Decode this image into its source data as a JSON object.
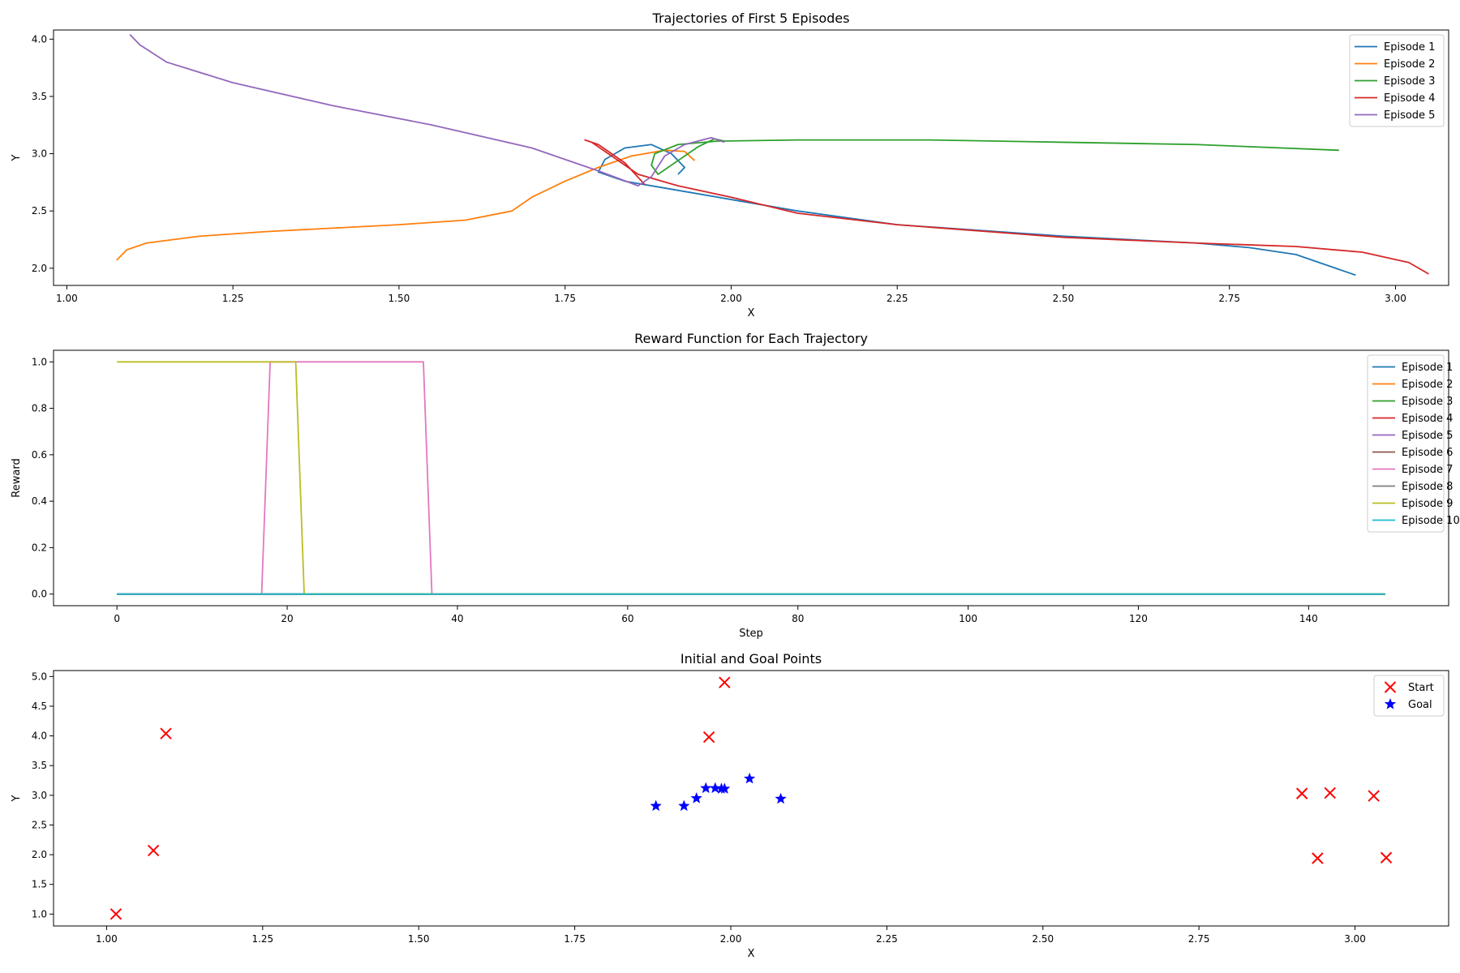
{
  "chart_data": [
    {
      "type": "line",
      "title": "Trajectories of First 5 Episodes",
      "xlabel": "X",
      "ylabel": "Y",
      "xlim": [
        0.98,
        3.08
      ],
      "ylim": [
        1.85,
        4.08
      ],
      "xticks": [
        1.0,
        1.25,
        1.5,
        1.75,
        2.0,
        2.25,
        2.5,
        2.75,
        3.0
      ],
      "yticks": [
        2.0,
        2.5,
        3.0,
        3.5,
        4.0
      ],
      "xtick_format": 2,
      "ytick_format": 1,
      "grid": false,
      "legend_position": "top-right",
      "series": [
        {
          "name": "Episode 1",
          "color": "#1f77b4",
          "points": [
            [
              2.94,
              1.94
            ],
            [
              2.9,
              2.02
            ],
            [
              2.85,
              2.12
            ],
            [
              2.78,
              2.18
            ],
            [
              2.7,
              2.22
            ],
            [
              2.5,
              2.28
            ],
            [
              2.25,
              2.38
            ],
            [
              2.1,
              2.5
            ],
            [
              2.0,
              2.6
            ],
            [
              1.9,
              2.7
            ],
            [
              1.84,
              2.76
            ],
            [
              1.8,
              2.84
            ],
            [
              1.81,
              2.95
            ],
            [
              1.84,
              3.05
            ],
            [
              1.88,
              3.08
            ],
            [
              1.91,
              3.0
            ],
            [
              1.93,
              2.88
            ],
            [
              1.92,
              2.82
            ]
          ]
        },
        {
          "name": "Episode 2",
          "color": "#ff7f0e",
          "points": [
            [
              1.075,
              2.07
            ],
            [
              1.09,
              2.16
            ],
            [
              1.12,
              2.22
            ],
            [
              1.2,
              2.28
            ],
            [
              1.3,
              2.32
            ],
            [
              1.5,
              2.38
            ],
            [
              1.6,
              2.42
            ],
            [
              1.67,
              2.5
            ],
            [
              1.7,
              2.62
            ],
            [
              1.75,
              2.76
            ],
            [
              1.8,
              2.88
            ],
            [
              1.85,
              2.98
            ],
            [
              1.9,
              3.03
            ],
            [
              1.93,
              3.02
            ],
            [
              1.945,
              2.94
            ]
          ]
        },
        {
          "name": "Episode 3",
          "color": "#2ca02c",
          "points": [
            [
              2.915,
              3.03
            ],
            [
              2.7,
              3.08
            ],
            [
              2.5,
              3.1
            ],
            [
              2.3,
              3.12
            ],
            [
              2.1,
              3.12
            ],
            [
              1.98,
              3.11
            ],
            [
              1.92,
              3.08
            ],
            [
              1.885,
              3.0
            ],
            [
              1.88,
              2.9
            ],
            [
              1.89,
              2.82
            ],
            [
              1.91,
              2.9
            ],
            [
              1.95,
              3.06
            ],
            [
              1.975,
              3.13
            ],
            [
              1.99,
              3.11
            ]
          ]
        },
        {
          "name": "Episode 4",
          "color": "#d62728",
          "points": [
            [
              3.05,
              1.95
            ],
            [
              3.02,
              2.05
            ],
            [
              2.95,
              2.14
            ],
            [
              2.85,
              2.19
            ],
            [
              2.7,
              2.22
            ],
            [
              2.5,
              2.27
            ],
            [
              2.25,
              2.38
            ],
            [
              2.1,
              2.48
            ],
            [
              2.0,
              2.62
            ],
            [
              1.92,
              2.72
            ],
            [
              1.86,
              2.82
            ],
            [
              1.82,
              2.98
            ],
            [
              1.79,
              3.1
            ],
            [
              1.78,
              3.12
            ],
            [
              1.8,
              3.08
            ],
            [
              1.84,
              2.92
            ],
            [
              1.87,
              2.73
            ]
          ]
        },
        {
          "name": "Episode 5",
          "color": "#9467bd",
          "points": [
            [
              1.095,
              4.04
            ],
            [
              1.11,
              3.95
            ],
            [
              1.15,
              3.8
            ],
            [
              1.25,
              3.62
            ],
            [
              1.4,
              3.42
            ],
            [
              1.55,
              3.25
            ],
            [
              1.7,
              3.05
            ],
            [
              1.8,
              2.85
            ],
            [
              1.86,
              2.72
            ],
            [
              1.88,
              2.8
            ],
            [
              1.9,
              2.98
            ],
            [
              1.93,
              3.08
            ],
            [
              1.97,
              3.14
            ],
            [
              1.99,
              3.1
            ]
          ]
        }
      ]
    },
    {
      "type": "line",
      "title": "Reward Function for Each Trajectory",
      "xlabel": "Step",
      "ylabel": "Reward",
      "xlim": [
        -7.45,
        156.45
      ],
      "ylim": [
        -0.05,
        1.05
      ],
      "xticks": [
        0,
        20,
        40,
        60,
        80,
        100,
        120,
        140
      ],
      "yticks": [
        0.0,
        0.2,
        0.4,
        0.6,
        0.8,
        1.0
      ],
      "xtick_format": 0,
      "ytick_format": 1,
      "grid": false,
      "legend_position": "top-right",
      "series": [
        {
          "name": "Episode 1",
          "color": "#1f77b4",
          "points": [
            [
              0,
              0
            ],
            [
              149,
              0
            ]
          ]
        },
        {
          "name": "Episode 2",
          "color": "#ff7f0e",
          "points": [
            [
              0,
              0
            ],
            [
              149,
              0
            ]
          ]
        },
        {
          "name": "Episode 3",
          "color": "#2ca02c",
          "points": [
            [
              0,
              0
            ],
            [
              149,
              0
            ]
          ]
        },
        {
          "name": "Episode 4",
          "color": "#d62728",
          "points": [
            [
              0,
              0
            ],
            [
              149,
              0
            ]
          ]
        },
        {
          "name": "Episode 5",
          "color": "#9467bd",
          "points": [
            [
              0,
              0
            ],
            [
              149,
              0
            ]
          ]
        },
        {
          "name": "Episode 6",
          "color": "#8c564b",
          "points": [
            [
              0,
              0
            ],
            [
              149,
              0
            ]
          ]
        },
        {
          "name": "Episode 7",
          "color": "#e377c2",
          "points": [
            [
              0,
              0
            ],
            [
              17,
              0
            ],
            [
              18,
              1
            ],
            [
              36,
              1
            ],
            [
              37,
              0
            ],
            [
              149,
              0
            ]
          ]
        },
        {
          "name": "Episode 8",
          "color": "#7f7f7f",
          "points": [
            [
              0,
              0
            ],
            [
              149,
              0
            ]
          ]
        },
        {
          "name": "Episode 9",
          "color": "#bcbd22",
          "points": [
            [
              0,
              1
            ],
            [
              21,
              1
            ],
            [
              22,
              0
            ],
            [
              149,
              0
            ]
          ]
        },
        {
          "name": "Episode 10",
          "color": "#17becf",
          "points": [
            [
              0,
              0
            ],
            [
              149,
              0
            ]
          ]
        }
      ]
    },
    {
      "type": "scatter",
      "title": "Initial and Goal Points",
      "xlabel": "X",
      "ylabel": "Y",
      "xlim": [
        0.915,
        3.15
      ],
      "ylim": [
        0.8,
        5.1
      ],
      "xticks": [
        1.0,
        1.25,
        1.5,
        1.75,
        2.0,
        2.25,
        2.5,
        2.75,
        3.0
      ],
      "yticks": [
        1.0,
        1.5,
        2.0,
        2.5,
        3.0,
        3.5,
        4.0,
        4.5,
        5.0
      ],
      "xtick_format": 2,
      "ytick_format": 1,
      "grid": false,
      "legend_position": "top-right",
      "series": [
        {
          "name": "Start",
          "color": "#ff0000",
          "marker": "x",
          "points": [
            [
              1.015,
              1.0
            ],
            [
              1.075,
              2.07
            ],
            [
              1.095,
              4.04
            ],
            [
              1.965,
              3.98
            ],
            [
              1.99,
              4.9
            ],
            [
              2.915,
              3.03
            ],
            [
              2.94,
              1.94
            ],
            [
              2.96,
              3.04
            ],
            [
              3.03,
              2.99
            ],
            [
              3.05,
              1.95
            ]
          ]
        },
        {
          "name": "Goal",
          "color": "#0000ff",
          "marker": "star",
          "points": [
            [
              1.88,
              2.82
            ],
            [
              1.925,
              2.82
            ],
            [
              1.945,
              2.95
            ],
            [
              1.96,
              3.12
            ],
            [
              1.975,
              3.12
            ],
            [
              1.985,
              3.11
            ],
            [
              1.99,
              3.11
            ],
            [
              2.03,
              3.28
            ],
            [
              2.08,
              2.94
            ]
          ]
        }
      ]
    }
  ]
}
